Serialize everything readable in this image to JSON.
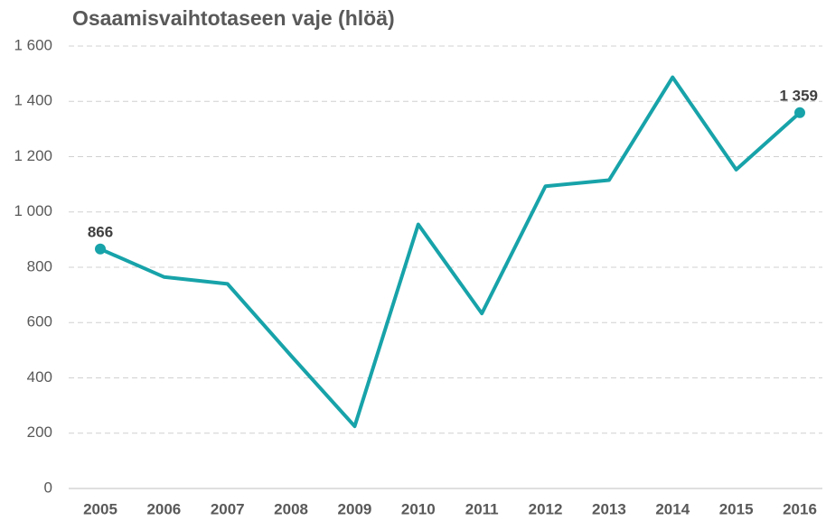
{
  "chart_data": {
    "type": "line",
    "title": "Osaamisvaihtotaseen vaje (hlöä)",
    "categories": [
      "2005",
      "2006",
      "2007",
      "2008",
      "2009",
      "2010",
      "2011",
      "2012",
      "2013",
      "2014",
      "2015",
      "2016"
    ],
    "values": [
      866,
      765,
      740,
      480,
      225,
      955,
      633,
      1093,
      1115,
      1487,
      1153,
      1359
    ],
    "value_labels": [
      "866",
      null,
      null,
      null,
      null,
      null,
      null,
      null,
      null,
      null,
      null,
      "1 359"
    ],
    "color": "#17a3a9",
    "ylim": [
      0,
      1600
    ],
    "yticks": [
      0,
      200,
      400,
      600,
      800,
      {
        "value": 1000,
        "label": "1 000"
      },
      {
        "value": 1200,
        "label": "1 200"
      },
      {
        "value": 1400,
        "label": "1 400"
      },
      {
        "value": 1600,
        "label": "1 600"
      }
    ],
    "grid": true
  }
}
